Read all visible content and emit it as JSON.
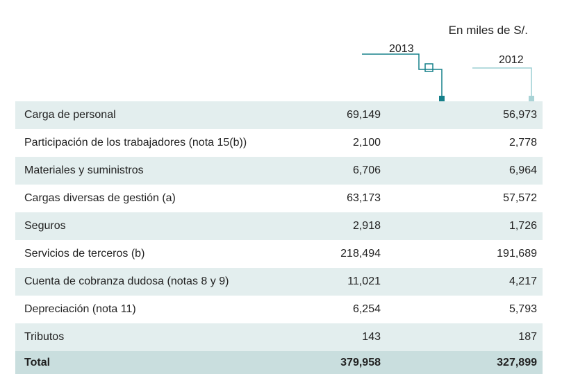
{
  "header": {
    "unit": "En miles de S/.",
    "columns": [
      "2013",
      "2012"
    ]
  },
  "table": {
    "rows": [
      [
        "Carga de personal",
        "69,149",
        "56,973"
      ],
      [
        "Participación de los trabajadores (nota 15(b))",
        "2,100",
        "2,778"
      ],
      [
        "Materiales y suministros",
        "6,706",
        "6,964"
      ],
      [
        "Cargas diversas de gestión (a)",
        "63,173",
        "57,572"
      ],
      [
        "Seguros",
        "2,918",
        "1,726"
      ],
      [
        "Servicios de terceros (b)",
        "218,494",
        "191,689"
      ],
      [
        "Cuenta de cobranza dudosa (notas 8 y 9)",
        "11,021",
        "4,217"
      ],
      [
        "Depreciación (nota 11)",
        "6,254",
        "5,793"
      ],
      [
        "Tributos",
        "143",
        "187"
      ]
    ],
    "total": [
      "Total",
      "379,958",
      "327,899"
    ]
  }
}
